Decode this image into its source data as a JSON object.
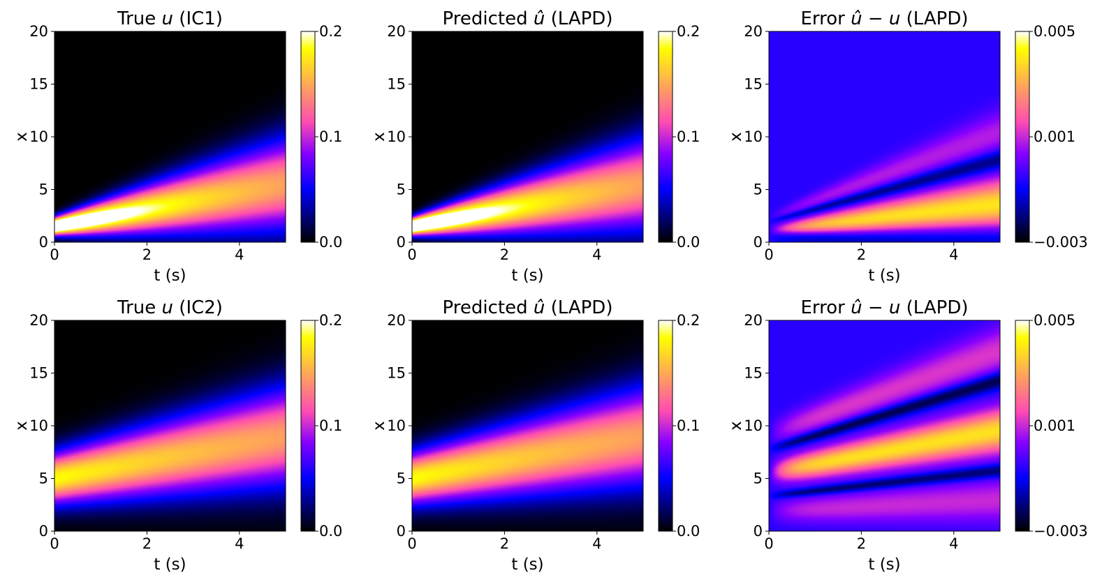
{
  "chart_data": [
    {
      "type": "heatmap",
      "title": "True u (IC1)",
      "title_parts": [
        "True ",
        "u",
        " (IC1)"
      ],
      "xlabel": "t (s)",
      "ylabel": "x",
      "xlim": [
        0,
        5
      ],
      "ylim": [
        0,
        20
      ],
      "xticks": [
        "0",
        "2",
        "4"
      ],
      "yticks": [
        "0",
        "5",
        "10",
        "15",
        "20"
      ],
      "field": "ic1_true",
      "colormap": "gnuplot2",
      "colorbar": {
        "ticks": [
          "0.0",
          "0.1",
          "0.2"
        ],
        "tick_values": [
          0.0,
          0.1,
          0.2
        ],
        "range": [
          0.0,
          0.2
        ]
      }
    },
    {
      "type": "heatmap",
      "title": "Predicted û (LAPD)",
      "title_parts": [
        "Predicted ",
        "û",
        " (LAPD)"
      ],
      "xlabel": "t (s)",
      "ylabel": "x",
      "xlim": [
        0,
        5
      ],
      "ylim": [
        0,
        20
      ],
      "xticks": [
        "0",
        "2",
        "4"
      ],
      "yticks": [
        "0",
        "5",
        "10",
        "15",
        "20"
      ],
      "field": "ic1_pred",
      "colormap": "gnuplot2",
      "colorbar": {
        "ticks": [
          "0.0",
          "0.1",
          "0.2"
        ],
        "tick_values": [
          0.0,
          0.1,
          0.2
        ],
        "range": [
          0.0,
          0.2
        ]
      }
    },
    {
      "type": "heatmap",
      "title": "Error û − u (LAPD)",
      "title_parts": [
        "Error ",
        "û − u",
        " (LAPD)"
      ],
      "xlabel": "t (s)",
      "ylabel": "x",
      "xlim": [
        0,
        5
      ],
      "ylim": [
        0,
        20
      ],
      "xticks": [
        "0",
        "2",
        "4"
      ],
      "yticks": [
        "0",
        "5",
        "10",
        "15",
        "20"
      ],
      "field": "ic1_err",
      "colormap": "gnuplot2",
      "colorbar": {
        "ticks": [
          "−0.003",
          "0.001",
          "0.005"
        ],
        "tick_values": [
          -0.003,
          0.001,
          0.005
        ],
        "range": [
          -0.003,
          0.005
        ]
      }
    },
    {
      "type": "heatmap",
      "title": "True u (IC2)",
      "title_parts": [
        "True ",
        "u",
        " (IC2)"
      ],
      "xlabel": "t (s)",
      "ylabel": "x",
      "xlim": [
        0,
        5
      ],
      "ylim": [
        0,
        20
      ],
      "xticks": [
        "0",
        "2",
        "4"
      ],
      "yticks": [
        "0",
        "5",
        "10",
        "15",
        "20"
      ],
      "field": "ic2_true",
      "colormap": "gnuplot2",
      "colorbar": {
        "ticks": [
          "0.0",
          "0.1",
          "0.2"
        ],
        "tick_values": [
          0.0,
          0.1,
          0.2
        ],
        "range": [
          0.0,
          0.2
        ]
      }
    },
    {
      "type": "heatmap",
      "title": "Predicted û (LAPD)",
      "title_parts": [
        "Predicted ",
        "û",
        " (LAPD)"
      ],
      "xlabel": "t (s)",
      "ylabel": "x",
      "xlim": [
        0,
        5
      ],
      "ylim": [
        0,
        20
      ],
      "xticks": [
        "0",
        "2",
        "4"
      ],
      "yticks": [
        "0",
        "5",
        "10",
        "15",
        "20"
      ],
      "field": "ic2_pred",
      "colormap": "gnuplot2",
      "colorbar": {
        "ticks": [
          "0.0",
          "0.1",
          "0.2"
        ],
        "tick_values": [
          0.0,
          0.1,
          0.2
        ],
        "range": [
          0.0,
          0.2
        ]
      }
    },
    {
      "type": "heatmap",
      "title": "Error û − u (LAPD)",
      "title_parts": [
        "Error ",
        "û − u",
        " (LAPD)"
      ],
      "xlabel": "t (s)",
      "ylabel": "x",
      "xlim": [
        0,
        5
      ],
      "ylim": [
        0,
        20
      ],
      "xticks": [
        "0",
        "2",
        "4"
      ],
      "yticks": [
        "0",
        "5",
        "10",
        "15",
        "20"
      ],
      "field": "ic2_err",
      "colormap": "gnuplot2",
      "colorbar": {
        "ticks": [
          "−0.003",
          "0.001",
          "0.005"
        ],
        "tick_values": [
          -0.003,
          0.001,
          0.005
        ],
        "range": [
          -0.003,
          0.005
        ]
      }
    }
  ]
}
